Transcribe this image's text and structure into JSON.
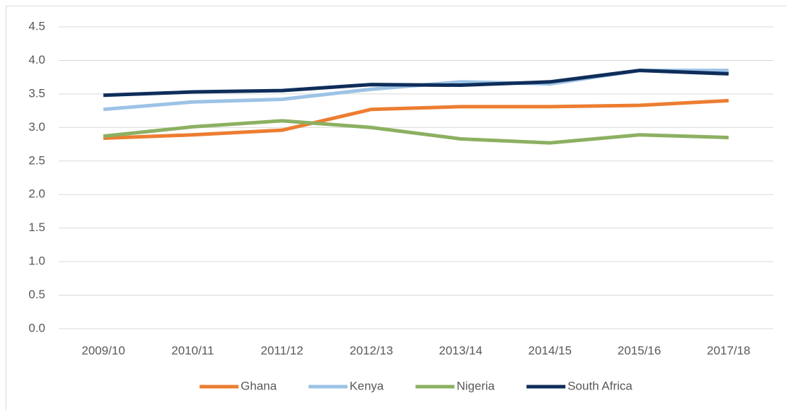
{
  "chart_data": {
    "type": "line",
    "categories": [
      "2009/10",
      "2010/11",
      "2011/12",
      "2012/13",
      "2013/14",
      "2014/15",
      "2015/16",
      "2017/18"
    ],
    "series": [
      {
        "name": "Ghana",
        "color": "#ed7d31",
        "values": [
          2.84,
          2.89,
          2.96,
          3.27,
          3.31,
          3.31,
          3.33,
          3.4
        ]
      },
      {
        "name": "Kenya",
        "color": "#9dc3e6",
        "values": [
          3.27,
          3.38,
          3.42,
          3.57,
          3.68,
          3.65,
          3.85,
          3.85
        ]
      },
      {
        "name": "Nigeria",
        "color": "#8cb061",
        "values": [
          2.87,
          3.01,
          3.1,
          3.0,
          2.83,
          2.77,
          2.89,
          2.85
        ]
      },
      {
        "name": "South Africa",
        "color": "#0e2d5a",
        "values": [
          3.48,
          3.53,
          3.55,
          3.64,
          3.63,
          3.68,
          3.85,
          3.8
        ]
      }
    ],
    "ylim": [
      0,
      4.5
    ],
    "yticks": [
      {
        "value": 0,
        "label": "0.0"
      },
      0.5,
      {
        "value": 1,
        "label": "1.0"
      },
      1.5,
      {
        "value": 2,
        "label": "2.0"
      },
      2.5,
      {
        "value": 3,
        "label": "3.0"
      },
      3.5,
      {
        "value": 4,
        "label": "4.0"
      },
      4.5
    ],
    "grid": true,
    "legend": "bottom"
  }
}
